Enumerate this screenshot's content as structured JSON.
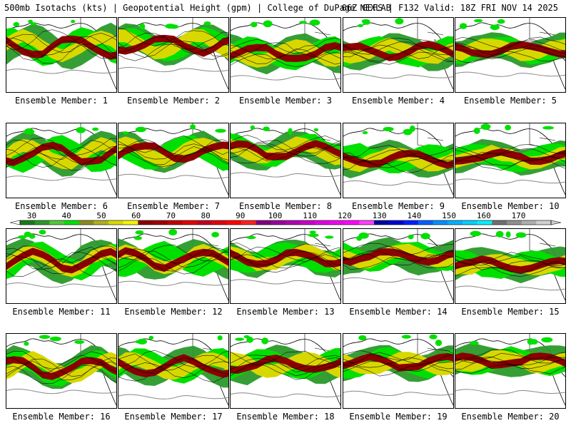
{
  "header": {
    "title": "500mb Isotachs (kts) | Geopotential Height (gpm) | College of DuPage NEXLAB",
    "run": "06Z GEFS | F132 Valid: 18Z FRI NOV 14 2025"
  },
  "panels": [
    {
      "label": "Ensemble Member: 1"
    },
    {
      "label": "Ensemble Member: 2"
    },
    {
      "label": "Ensemble Member: 3"
    },
    {
      "label": "Ensemble Member: 4"
    },
    {
      "label": "Ensemble Member: 5"
    },
    {
      "label": "Ensemble Member: 6"
    },
    {
      "label": "Ensemble Member: 7"
    },
    {
      "label": "Ensemble Member: 8"
    },
    {
      "label": "Ensemble Member: 9"
    },
    {
      "label": "Ensemble Member: 10"
    },
    {
      "label": "Ensemble Member: 11"
    },
    {
      "label": "Ensemble Member: 12"
    },
    {
      "label": "Ensemble Member: 13"
    },
    {
      "label": "Ensemble Member: 14"
    },
    {
      "label": "Ensemble Member: 15"
    },
    {
      "label": "Ensemble Member: 16"
    },
    {
      "label": "Ensemble Member: 17"
    },
    {
      "label": "Ensemble Member: 18"
    },
    {
      "label": "Ensemble Member: 19"
    },
    {
      "label": "Ensemble Member: 20"
    }
  ],
  "colorbar": {
    "ticks": [
      "30",
      "40",
      "50",
      "60",
      "70",
      "80",
      "90",
      "100",
      "110",
      "120",
      "130",
      "140",
      "150",
      "160",
      "170"
    ],
    "colors": [
      "#1a7a1a",
      "#2a9a2a",
      "#4fc93a",
      "#00e000",
      "#8c8c1e",
      "#b0b020",
      "#d8d800",
      "#f4f400",
      "#8b0000",
      "#a00000",
      "#c00000",
      "#e00000",
      "#c00020",
      "#e00010",
      "#ff0000",
      "#ff2020",
      "#800080",
      "#9a009a",
      "#b000b0",
      "#c800c8",
      "#e000e0",
      "#f000f0",
      "#ff00ff",
      "#ff40ff",
      "#0000a0",
      "#0000d0",
      "#0020ff",
      "#0060ff",
      "#0090ff",
      "#00b0ff",
      "#00d0ff",
      "#00f0ff",
      "#707070",
      "#909090",
      "#b0b0b0",
      "#d0d0d0"
    ]
  }
}
